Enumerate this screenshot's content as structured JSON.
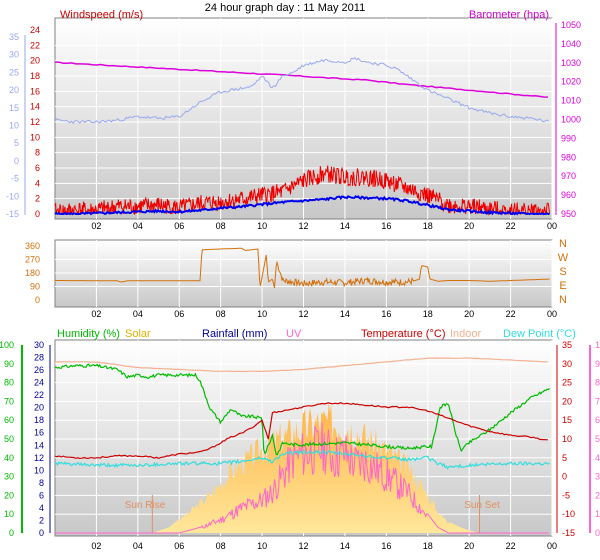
{
  "page": {
    "title": "24 hour graph day : 11 May 2011"
  },
  "colors": {
    "panel_top": "#ffffff",
    "panel_bottom": "#c8c8c8",
    "grid": "#ffffff",
    "frame": "#808080",
    "wind_avg": "#0000ee",
    "wind_gust": "#ee0000",
    "baro": "#dd00dd",
    "temp_axis": "#9aa8ee",
    "wind_dir": "#d4700a",
    "humidity": "#00bb00",
    "solar": "#ffcc55",
    "rain": "#000099",
    "uv": "#ff66cc",
    "temp": "#cc0000",
    "indoor": "#f4b090",
    "dew": "#33dddd"
  },
  "chart_data": [
    {
      "id": "top",
      "type": "line",
      "title": "",
      "left_label": "Windspeed (m/s)",
      "right_label": "Barometer (hpa)",
      "x_ticks": [
        "02",
        "04",
        "06",
        "08",
        "10",
        "12",
        "14",
        "16",
        "18",
        "20",
        "22",
        "00"
      ],
      "left_ticks": [
        "24",
        "22",
        "20",
        "18",
        "16",
        "14",
        "12",
        "10",
        "8",
        "6",
        "4",
        "2",
        "0"
      ],
      "left_ylim": [
        0,
        25
      ],
      "outer_left_ticks": [
        "35",
        "30",
        "25",
        "20",
        "15",
        "10",
        "5",
        "0",
        "-5",
        "-10",
        "-15"
      ],
      "outer_left_ylim": [
        -15,
        35
      ],
      "right_ticks": [
        "1050",
        "1040",
        "1030",
        "1020",
        "1010",
        "1000",
        "990",
        "980",
        "970",
        "960",
        "950"
      ],
      "right_ylim": [
        947,
        1053
      ],
      "series": [
        {
          "key": "baro",
          "x": [
            0,
            4,
            8,
            12,
            14,
            15,
            17,
            20,
            23.9
          ],
          "y": [
            1029,
            1026.5,
            1024,
            1021.5,
            1020,
            1019.5,
            1017,
            1014,
            1010
          ]
        },
        {
          "key": "temp",
          "x": [
            0,
            1,
            2,
            3,
            4,
            5,
            6,
            7,
            8,
            9,
            9.5,
            10,
            10.5,
            11,
            11.5,
            12,
            13,
            14,
            14.5,
            15,
            16,
            16.5,
            17,
            17.5,
            18,
            19,
            20,
            21,
            22,
            23,
            23.9
          ],
          "y": [
            11.5,
            11,
            11,
            11.5,
            12.5,
            12,
            12.5,
            16.5,
            19.5,
            20.5,
            21,
            24,
            20.5,
            24,
            25,
            27,
            28.5,
            28,
            29,
            28,
            27,
            26,
            24,
            22,
            20,
            17.5,
            15,
            13.5,
            12.5,
            12,
            11
          ]
        },
        {
          "key": "gust",
          "x": [
            0,
            1,
            2,
            3,
            4,
            5,
            6,
            7,
            8,
            9,
            10,
            11,
            12,
            13,
            14,
            15,
            16,
            17,
            18,
            19,
            20,
            21,
            22,
            23,
            23.9
          ],
          "y": [
            0.3,
            0.5,
            0.5,
            1,
            1,
            1.2,
            0.8,
            1.4,
            1.6,
            2,
            2.5,
            3,
            4.5,
            5.5,
            5,
            5,
            4.5,
            3.5,
            2.5,
            1.2,
            1,
            0.6,
            0.5,
            0.4,
            0.3
          ]
        },
        {
          "key": "avg",
          "x": [
            0,
            1,
            2,
            3,
            4,
            5,
            6,
            7,
            8,
            9,
            10,
            11,
            12,
            13,
            14,
            15,
            16,
            17,
            18,
            19,
            20,
            21,
            22,
            23,
            23.9
          ],
          "y": [
            0,
            0,
            0.1,
            0.2,
            0.3,
            0.4,
            0.3,
            0.5,
            0.8,
            1,
            1.3,
            1.6,
            1.8,
            2,
            2.3,
            2.2,
            2.1,
            1.8,
            1.2,
            0.6,
            0.4,
            0.2,
            0.1,
            0,
            0
          ]
        }
      ]
    },
    {
      "id": "mid",
      "type": "line",
      "title": "",
      "left_ticks": [
        "360",
        "270",
        "180",
        "90",
        "0"
      ],
      "left_ylim": [
        0,
        360
      ],
      "right_ticks": [
        "N",
        "W",
        "S",
        "E",
        "N"
      ],
      "x_ticks": [
        "02",
        "04",
        "06",
        "08",
        "10",
        "12",
        "14",
        "16",
        "18",
        "20",
        "22",
        "00"
      ],
      "series": [
        {
          "key": "dir",
          "x": [
            0,
            3,
            3.2,
            3.5,
            7,
            7.1,
            8,
            9,
            9.2,
            9.8,
            9.9,
            10.2,
            10.3,
            10.5,
            10.6,
            10.7,
            11,
            12,
            13,
            14,
            15,
            16,
            17,
            17.4,
            17.6,
            17.7,
            18,
            18.1,
            18.5,
            19,
            20,
            21,
            22,
            23,
            23.9
          ],
          "y": [
            130,
            128,
            120,
            128,
            128,
            335,
            340,
            345,
            330,
            340,
            80,
            300,
            120,
            140,
            80,
            260,
            130,
            110,
            120,
            115,
            130,
            120,
            120,
            130,
            140,
            230,
            220,
            140,
            125,
            130,
            130,
            125,
            130,
            135,
            140
          ]
        }
      ]
    },
    {
      "id": "bottom",
      "type": "line",
      "title": "",
      "labels": {
        "humidity": "Humidity (%)",
        "solar": "Solar",
        "rain": "Rainfall (mm)",
        "uv": "UV",
        "temp": "Temperature (°C)",
        "indoor": "Indoor",
        "dew": "Dew Point (°C)"
      },
      "annotations": {
        "sunrise": "Sun Rise",
        "sunset": "Sun Set"
      },
      "x_ticks": [
        "02",
        "04",
        "06",
        "08",
        "10",
        "12",
        "14",
        "16",
        "18",
        "20",
        "22",
        "00"
      ],
      "hum_ticks": [
        "100",
        "90",
        "80",
        "70",
        "60",
        "50",
        "40",
        "30",
        "20",
        "10",
        "0"
      ],
      "hum_ylim": [
        0,
        100
      ],
      "rain_ticks": [
        "30",
        "28",
        "26",
        "24",
        "22",
        "20",
        "18",
        "16",
        "14",
        "12",
        "10",
        "8",
        "6",
        "4",
        "2",
        "0"
      ],
      "rain_ylim": [
        0,
        30
      ],
      "temp_ticks": [
        "35",
        "30",
        "25",
        "20",
        "15",
        "10",
        "5",
        "0",
        "-5",
        "-10",
        "-15"
      ],
      "temp_ylim": [
        -15,
        35
      ],
      "uv_ticks": [
        "10",
        "9",
        "8",
        "7",
        "6",
        "5",
        "4",
        "3",
        "2",
        "1",
        "0"
      ],
      "uv_ylim": [
        0,
        10
      ],
      "series": [
        {
          "key": "solar",
          "x": [
            0,
            4.7,
            5.5,
            6.5,
            7.5,
            8.5,
            9.5,
            10.5,
            11.5,
            12.5,
            13.2,
            14,
            15,
            16,
            17,
            18,
            18.5,
            19,
            19.8,
            20.5
          ],
          "y": [
            0,
            0,
            3,
            12,
            22,
            35,
            44,
            52,
            58,
            63,
            64,
            62,
            55,
            47,
            38,
            22,
            12,
            6,
            2,
            0
          ]
        },
        {
          "key": "uv",
          "x": [
            0,
            6,
            7,
            8,
            9,
            10,
            10.5,
            11,
            11.5,
            12,
            12.5,
            13,
            13.5,
            14,
            14.5,
            15,
            16,
            17,
            18,
            18.5,
            19
          ],
          "y": [
            0,
            0,
            0.3,
            0.8,
            1.5,
            2,
            2.5,
            3.5,
            4.5,
            4.8,
            5,
            5.2,
            4.6,
            4.8,
            4.2,
            4.3,
            3.5,
            2.5,
            1,
            0.3,
            0
          ]
        },
        {
          "key": "humidity",
          "x": [
            0,
            1,
            2,
            3,
            3.5,
            4,
            4.5,
            5,
            5.5,
            6,
            6.8,
            7,
            7.5,
            8,
            8.5,
            9,
            9.5,
            10,
            10.1,
            10.5,
            10.7,
            11,
            11.5,
            12,
            14,
            16,
            17,
            18,
            18.2,
            18.6,
            19,
            19.3,
            19.6,
            20,
            21,
            22,
            23,
            23.9
          ],
          "y": [
            88,
            89,
            89,
            87,
            83,
            84,
            83,
            84,
            84,
            84,
            84,
            81,
            66,
            59,
            66,
            62,
            62,
            61,
            41,
            52,
            41,
            48,
            47,
            47,
            48,
            46,
            45,
            46,
            46,
            67,
            69,
            55,
            44,
            48,
            55,
            64,
            72,
            77
          ]
        },
        {
          "key": "temp",
          "x": [
            0,
            1,
            2,
            3,
            4,
            5,
            6,
            7,
            7.5,
            8,
            8.5,
            9,
            9.5,
            10,
            10.3,
            10.5,
            11,
            12,
            13,
            14,
            15,
            16,
            17,
            18,
            19,
            20,
            21,
            22,
            23,
            23.9
          ],
          "y": [
            5.5,
            5,
            5,
            5.5,
            5.5,
            5,
            6,
            6.5,
            7.5,
            9,
            10.5,
            11.5,
            13,
            15,
            10,
            17,
            17.5,
            18.5,
            19.5,
            19.5,
            19,
            18.5,
            18.5,
            17.5,
            15.5,
            13.5,
            12,
            11,
            10.5,
            9.5
          ]
        },
        {
          "key": "indoor",
          "x": [
            0,
            2,
            4,
            6,
            8,
            10,
            12,
            14,
            16,
            18,
            20,
            22,
            23.9
          ],
          "y": [
            30.5,
            30.5,
            29,
            28.5,
            28,
            28,
            28.5,
            29.5,
            30.5,
            31.5,
            31.5,
            31,
            30.5
          ]
        },
        {
          "key": "dew",
          "x": [
            0,
            2,
            4,
            6,
            8,
            9,
            10,
            10.5,
            11,
            12,
            13,
            14,
            15,
            16,
            17,
            18,
            18.5,
            19,
            20,
            22,
            23.9
          ],
          "y": [
            3.5,
            3,
            3,
            3.5,
            3.5,
            4,
            5,
            4,
            6,
            6.5,
            6.5,
            6,
            5.5,
            5,
            4.5,
            5,
            3.5,
            2.5,
            3,
            3.5,
            3.5
          ]
        }
      ]
    }
  ]
}
